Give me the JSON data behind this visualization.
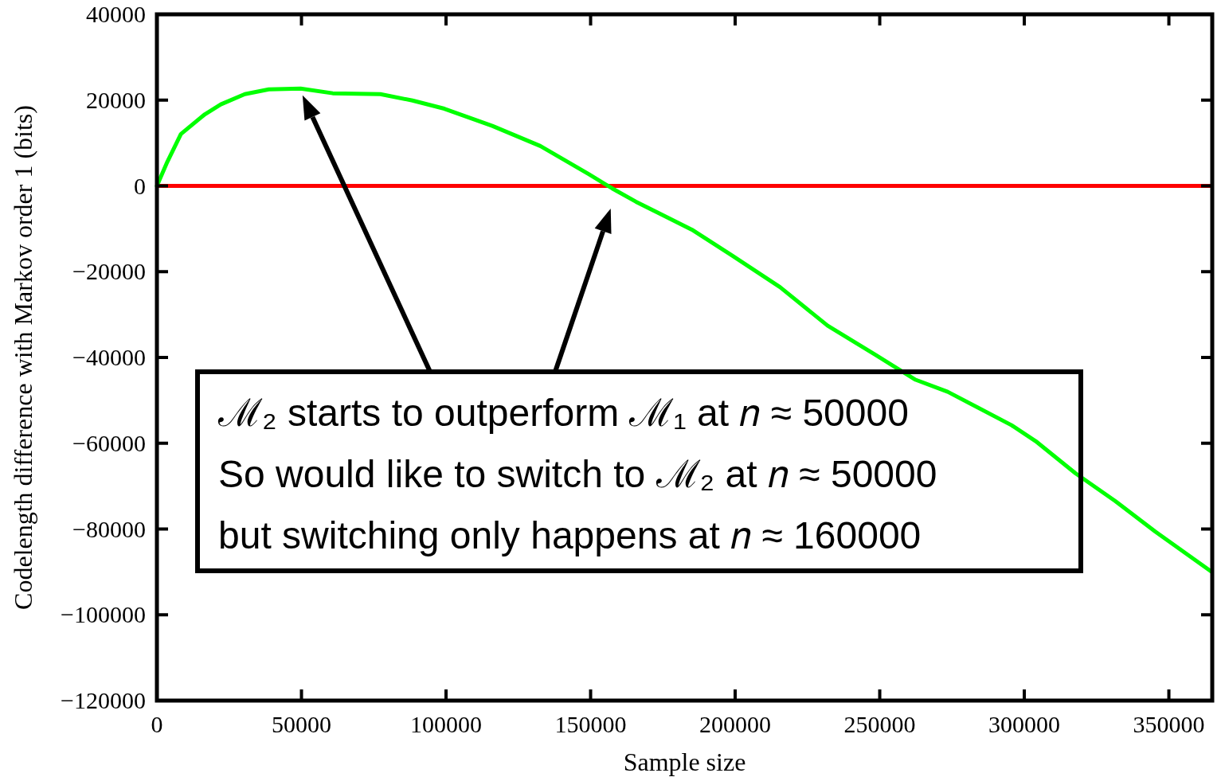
{
  "chart_data": {
    "type": "line",
    "xlabel": "Sample size",
    "ylabel": "Codelength difference with Markov order 1 (bits)",
    "x": [
      0,
      3600,
      8300,
      16600,
      22100,
      30400,
      38700,
      49700,
      60800,
      77300,
      88400,
      99400,
      116000,
      132600,
      149200,
      157500,
      165700,
      174000,
      185000,
      198900,
      215500,
      232000,
      248600,
      262400,
      273500,
      295600,
      303900,
      317700,
      331500,
      345300,
      364600
    ],
    "series": [
      {
        "color": "#00ff00",
        "values": [
          0,
          5600,
          12100,
          16700,
          19000,
          21400,
          22500,
          22700,
          21600,
          21400,
          19900,
          18000,
          14000,
          9300,
          2800,
          -600,
          -3700,
          -6500,
          -10200,
          -16200,
          -23600,
          -32600,
          -39400,
          -45200,
          -48000,
          -55800,
          -59500,
          -67000,
          -73500,
          -80600,
          -89900
        ]
      }
    ],
    "xlim": [
      0,
      365000
    ],
    "xticks": [
      0,
      50000,
      100000,
      150000,
      200000,
      250000,
      300000,
      350000
    ],
    "ylim": [
      -120000,
      40000
    ],
    "yticks": [
      40000,
      20000,
      0,
      {
        "value": -20000,
        "label": "−20000"
      },
      {
        "value": -40000,
        "label": "−40000"
      },
      {
        "value": -60000,
        "label": "−60000"
      },
      {
        "value": -80000,
        "label": "−80000"
      },
      {
        "value": -100000,
        "label": "−100000"
      },
      {
        "value": -120000,
        "label": "−120000"
      }
    ],
    "ref_lines": [
      {
        "axis": "y",
        "value": 0,
        "color": "#ff0000"
      }
    ],
    "annotations": [
      "ℳ₂ starts to outperform ℳ₁ at 𝑛 ≈ 50000",
      "So would like to switch to ℳ₂ at 𝑛 ≈ 50000",
      "but switching only happens at 𝑛 ≈ 160000"
    ],
    "grid": false,
    "line_style": "solid",
    "marker": "none"
  }
}
